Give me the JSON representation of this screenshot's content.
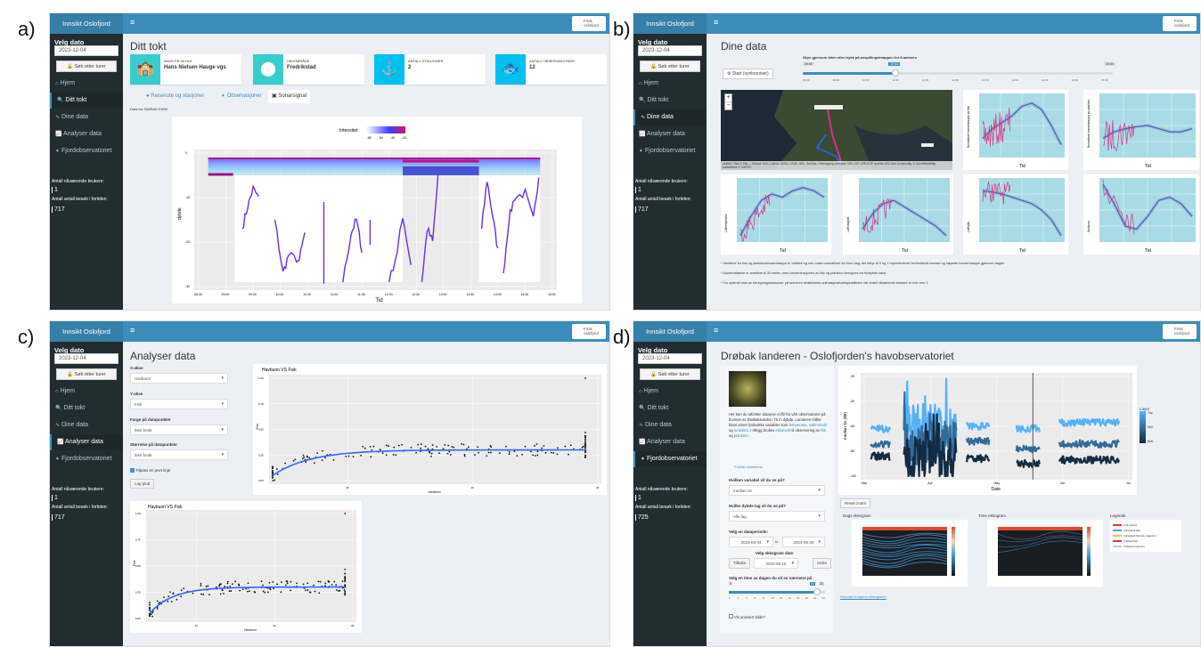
{
  "panel_labels": [
    "a)",
    "b)",
    "c)",
    "d)"
  ],
  "app": {
    "title": "Innsikt Oslofjord",
    "menu_icon": "≡",
    "brand": "Frisk oslofjord"
  },
  "sidebar": {
    "date_label": "Velg dato",
    "date_value": "2023-12-04",
    "search_button": "Søk etter turer",
    "nav": [
      {
        "label": "Hjem",
        "icon": "home-icon",
        "glyph": "⌂"
      },
      {
        "label": "Ditt tokt",
        "icon": "search-icon",
        "glyph": "🔍"
      },
      {
        "label": "Dine data",
        "icon": "wave-icon",
        "glyph": "∿"
      },
      {
        "label": "Analyser data",
        "icon": "line-chart-icon",
        "glyph": "📈"
      },
      {
        "label": "Fjordobservatoriet",
        "icon": "fish-icon",
        "glyph": "➧"
      }
    ],
    "current_users_label": "Antall nåværende brukere:",
    "current_users": "1",
    "visits_label": "Antall antall besøk i fortiden:"
  },
  "visits": {
    "a": "717",
    "b": "717",
    "c": "717",
    "d": "725"
  },
  "panel_a": {
    "title": "Ditt tokt",
    "boxes": [
      {
        "label": "Navn på skole",
        "value": "Hans Nielsen Hauge vgs",
        "icon": "school-icon",
        "glyph": "🏫",
        "color": "#39cccc"
      },
      {
        "label": "Havområde",
        "value": "Fredrikstad",
        "icon": "map-marker-icon",
        "glyph": "⬤",
        "color": "#39cccc"
      },
      {
        "label": "Antall stasjoner",
        "value": "2",
        "icon": "anchor-icon",
        "glyph": "⚓",
        "color": "#00c0ef"
      },
      {
        "label": "Antall observasjoner",
        "value": "12",
        "icon": "fish-icon",
        "glyph": "🐟",
        "color": "#00c0ef"
      }
    ],
    "tabs": [
      "Reiserute og stasjoner",
      "Observasjoner",
      "Sonarsignal"
    ],
    "data_source": "Data fra SIMRAD EK80",
    "sonar": {
      "legend_title": "Intensitet",
      "legend_ticks": [
        "-80",
        "-60",
        "-40",
        "-20"
      ],
      "x_ticks": [
        "08:30",
        "09:00",
        "09:30",
        "10:00",
        "10:30",
        "11:00",
        "11:30",
        "12:00",
        "12:30",
        "13:00",
        "13:30",
        "14:00",
        "14:30",
        "15:00"
      ],
      "y_ticks": [
        "0",
        "-10",
        "-20",
        "-30"
      ],
      "xlabel": "Tid",
      "ylabel": "dybde"
    }
  },
  "panel_b": {
    "title": "Dine data",
    "start_button": "Start (synkroniser)",
    "slider_label": "Skyv gjennom tiden eller trykk på avspillingsknappen for å animere",
    "slider_min": "09:00",
    "slider_value": "10:43",
    "slider_max": "15:00",
    "slider_fraction": 0.3,
    "slider_ticks": [
      "09:00",
      "09:30",
      "10:00",
      "10:30",
      "11:00",
      "12:00",
      "12:30",
      "13:00",
      "14:00",
      "14:30",
      "15:00"
    ],
    "map_zoom_in": "+",
    "map_zoom_out": "−",
    "map_attribution": "Leaflet | Tiles © Esri — Source: Esri, i-cubed, USDA, USGS, AEX, GeoEye, Getmapping, Aerogrid, IGN, IGP, UPR-EGP, and the GIS User Community, © OpenStreetMap contributors © CARTO",
    "charts": [
      {
        "ylabel": "Normalisert konsentrasjon av fisk"
      },
      {
        "ylabel": "Normalisert konsentrasjon av plankton"
      },
      {
        "ylabel": "Lufttemperatur"
      },
      {
        "ylabel": "Luftfuktighet"
      },
      {
        "ylabel": "Lufttrykk"
      },
      {
        "ylabel": "Havbunn"
      }
    ],
    "xlabel": "Tid",
    "notes": [
      "* Verdiene for fisk og planktonkonsentrasjon er relative og min-maks normalisert for hver dag; det betyr at 0 og 1 representerer henholdsvis laveste og høyeste konsentrasjon gjennom dagen.",
      "* Dybdedataene er avskåret til 30 meter, men konsentrasjonen av fisk og plankton beregnes fra fulldybde data.",
      "* For optimal bruk av beregningsressurser på serveren deaktiveres animasjonsfunksjonaliteten når antall nåværende brukere er mer enn 1."
    ]
  },
  "panel_c": {
    "title": "Analyser data",
    "x_label": "X-akse",
    "x_value": "Havbunn",
    "y_label": "Y-akse",
    "y_value": "Fisk",
    "color_label": "Farge på datapunkter",
    "color_value": "Ikke brukt",
    "size_label": "Størrelse på datapunkter",
    "size_value": "Ikke brukt",
    "smooth_label": "Tilpass en jevn linje",
    "smooth_checked": true,
    "plot_button": "Lag plott",
    "plot_title": "Havbunn VS Fisk",
    "plot_xlabel": "Havbunn",
    "plot_ylabel": "Fisk",
    "y_ticks": [
      "0.00",
      "0.25",
      "0.50",
      "0.75",
      "1.00"
    ],
    "x_ticks": [
      "10",
      "20",
      "30"
    ]
  },
  "panel_d": {
    "title": "Drøbak landeren - Oslofjorden's havobservatoriet",
    "intro": [
      "Her kan du utforske dataene vi får fra vårt observatoriet på bunnen av Drøbaksundet i 75 m dybde. Landeren måler blant annet fysikalske variabler som ",
      "temperatur",
      ", ",
      "saltinnhold",
      " og ",
      "turbiditet",
      ". I tillegg brukes ",
      "ekkolodd",
      " til observering av ",
      "fisk",
      " og ",
      "plankton",
      "."
    ],
    "explain_link": "Forklar variablene",
    "variable_label": "Hvilken variabel vil du se på?",
    "variable_value": "median Sv",
    "layer_label": "Hvilke dybde lag vil du se på?",
    "layer_value": "Alle lag",
    "period_label": "Velg en dataperiode:",
    "period_start": "2023-03-04",
    "period_to": "to",
    "period_end": "2023-06-28",
    "echo_date_label": "Velg ekkogram dato",
    "back_button": "Tilbake",
    "echo_date": "2023-05-15",
    "next_button": "neste",
    "hour_label": "Velg en time av dagen du vil se nærmere på",
    "hour_min": "0",
    "hour_value": "21",
    "hour_max": "23",
    "hour_ticks": [
      "0",
      "2",
      "4",
      "6",
      "8",
      "10",
      "12",
      "14",
      "16",
      "18",
      "20",
      "23"
    ],
    "annot_label": "Vis annotert bilde?",
    "chart_ylabel": "median Sv (dB)",
    "chart_xlabel": "Date",
    "chart_y_ticks": [
      "-20",
      "-40",
      "-60",
      "-80",
      "-100"
    ],
    "chart_x_ticks": [
      "Mar",
      "Apr",
      "May",
      "Jun",
      "Jul"
    ],
    "legend_title": "Layer",
    "legend_items": [
      "Top",
      "Mid",
      "Bott"
    ],
    "layer_colors": [
      "#56b1f7",
      "#336a98",
      "#132b43"
    ],
    "reset_zoom": "Reset zoom",
    "day_echogram": "Dags ekkogram",
    "hour_echogram": "Time ekkogram",
    "legend_heading": "Legende",
    "legend_entries": [
      "Fisk school",
      "Individuell fisk",
      "Individuell fisk lite organism",
      "Tracked fish",
      "Tracked organism"
    ],
    "echogram_link": "Hvordan fungerer ekkogram?"
  }
}
